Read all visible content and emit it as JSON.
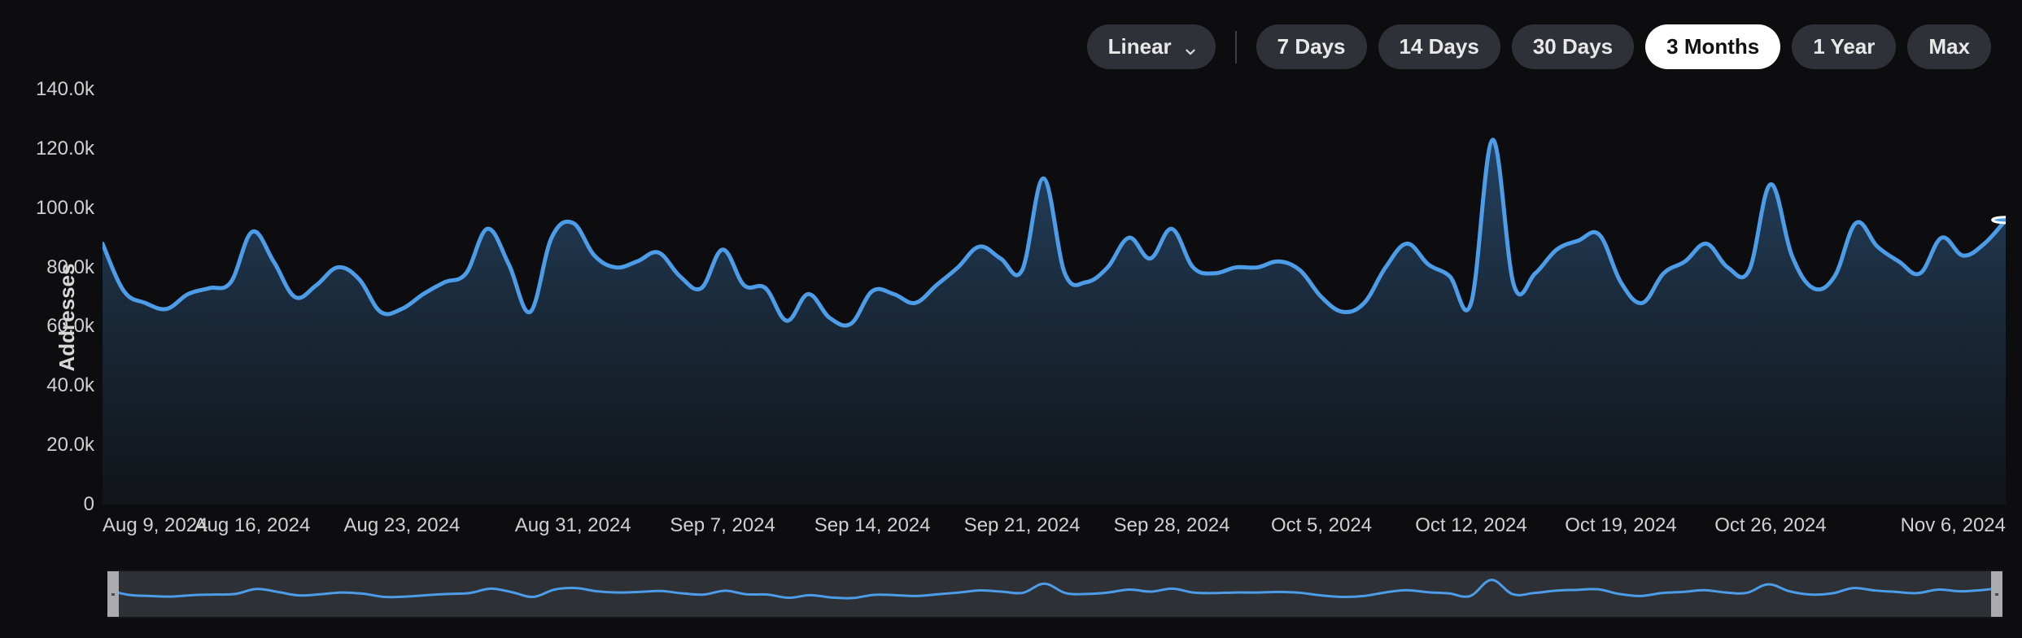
{
  "controls": {
    "scale": {
      "selected": "Linear"
    },
    "ranges": [
      {
        "label": "7 Days",
        "active": false
      },
      {
        "label": "14 Days",
        "active": false
      },
      {
        "label": "30 Days",
        "active": false
      },
      {
        "label": "3 Months",
        "active": true
      },
      {
        "label": "1 Year",
        "active": false
      },
      {
        "label": "Max",
        "active": false
      }
    ]
  },
  "chart": {
    "type": "area",
    "y_axis_label": "Addresses",
    "yticks": [
      {
        "value": 0,
        "label": "0"
      },
      {
        "value": 20000,
        "label": "20.0k"
      },
      {
        "value": 40000,
        "label": "40.0k"
      },
      {
        "value": 60000,
        "label": "60.0k"
      },
      {
        "value": 80000,
        "label": "80.0k"
      },
      {
        "value": 100000,
        "label": "100.0k"
      },
      {
        "value": 120000,
        "label": "120.0k"
      },
      {
        "value": 140000,
        "label": "140.0k"
      }
    ],
    "ylim": [
      0,
      140000
    ],
    "xticks": [
      {
        "index": 0,
        "label": "Aug 9, 2024"
      },
      {
        "index": 7,
        "label": "Aug 16, 2024"
      },
      {
        "index": 14,
        "label": "Aug 23, 2024"
      },
      {
        "index": 22,
        "label": "Aug 31, 2024"
      },
      {
        "index": 29,
        "label": "Sep 7, 2024"
      },
      {
        "index": 36,
        "label": "Sep 14, 2024"
      },
      {
        "index": 43,
        "label": "Sep 21, 2024"
      },
      {
        "index": 50,
        "label": "Sep 28, 2024"
      },
      {
        "index": 57,
        "label": "Oct 5, 2024"
      },
      {
        "index": 64,
        "label": "Oct 12, 2024"
      },
      {
        "index": 71,
        "label": "Oct 19, 2024"
      },
      {
        "index": 78,
        "label": "Oct 26, 2024"
      },
      {
        "index": 89,
        "label": "Nov 6, 2024"
      }
    ],
    "series": {
      "values": [
        88000,
        72000,
        68000,
        66000,
        71000,
        73000,
        75000,
        92000,
        82000,
        70000,
        74000,
        80000,
        76000,
        65000,
        66000,
        71000,
        75000,
        78000,
        93000,
        81000,
        65000,
        90000,
        95000,
        84000,
        80000,
        82000,
        85000,
        77000,
        73000,
        86000,
        74000,
        73000,
        62000,
        71000,
        63000,
        61000,
        72000,
        71000,
        68000,
        74000,
        80000,
        87000,
        83000,
        79000,
        110000,
        78000,
        75000,
        80000,
        90000,
        83000,
        93000,
        80000,
        78000,
        80000,
        80000,
        82000,
        79000,
        70000,
        65000,
        68000,
        80000,
        88000,
        81000,
        77000,
        68000,
        123000,
        74000,
        78000,
        86000,
        89000,
        91000,
        75000,
        68000,
        78000,
        82000,
        88000,
        80000,
        79000,
        108000,
        84000,
        73000,
        77000,
        95000,
        87000,
        82000,
        78000,
        90000,
        84000,
        88000,
        96000
      ]
    },
    "line_color": "#4c9ce8",
    "line_width": 5,
    "area_gradient_top": "#27496b",
    "area_gradient_bottom": "#151b22",
    "area_opacity": 0.9,
    "background_color": "#0d0d10",
    "end_marker": {
      "radius": 7,
      "fill": "#4c9ce8",
      "stroke": "#ffffff",
      "stroke_width": 3
    }
  },
  "minimap": {
    "background": "#2d3035",
    "line_color": "#4c9ce8",
    "line_width": 3,
    "handle_color": "#a9abae"
  }
}
